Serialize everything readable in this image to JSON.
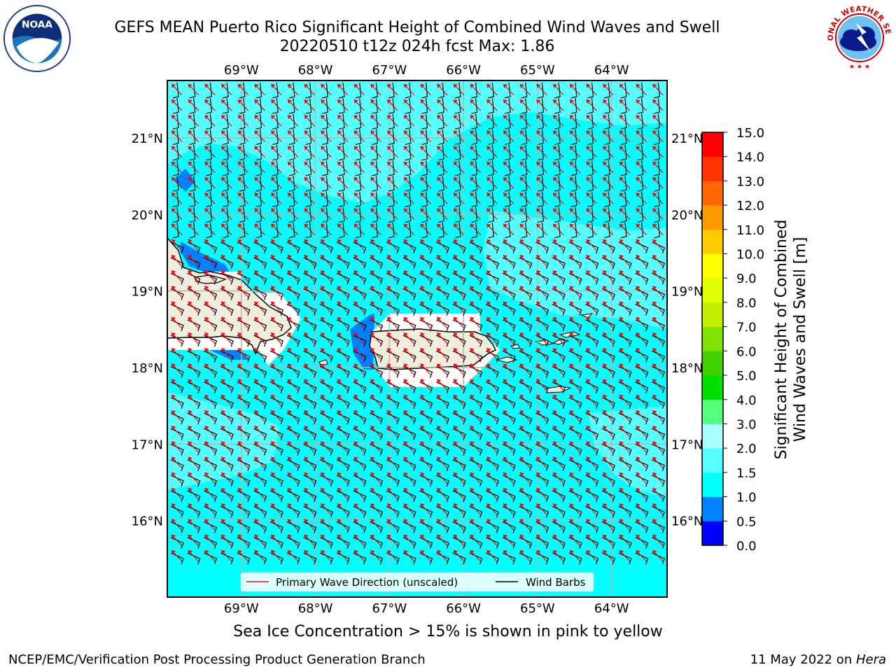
{
  "header": {
    "title_line1": "GEFS MEAN Puerto Rico Significant Height of Combined Wind Waves and Swell",
    "title_line2": "20220510 t12z 024h fcst   Max: 1.86"
  },
  "logos": {
    "left_icon": "noaa-logo-icon",
    "left_text": "NOAA",
    "right_icon": "nws-logo-icon",
    "right_text": "NATIONAL WEATHER SERVICE"
  },
  "map": {
    "lon_labels": [
      "69°W",
      "68°W",
      "67°W",
      "66°W",
      "65°W",
      "64°W"
    ],
    "lat_labels": [
      "21°N",
      "20°N",
      "19°N",
      "18°N",
      "17°N",
      "16°N"
    ],
    "lon_range": [
      -70.0,
      -63.25
    ],
    "lat_range": [
      15.0,
      21.75
    ],
    "ocean_color": "#00ffff",
    "land_color": "#efedde",
    "arrow_color": "#ff0000",
    "barb_color": "#000000"
  },
  "legend": {
    "wave_label": "Primary Wave Direction (unscaled)",
    "barb_label": "Wind Barbs"
  },
  "colorbar": {
    "title_line1": "Significant Height of Combined",
    "title_line2": "Wind Waves and Swell [m]",
    "ticks": [
      "0.0",
      "0.5",
      "1.0",
      "1.5",
      "2.0",
      "3.0",
      "4.0",
      "5.0",
      "6.0",
      "7.0",
      "8.0",
      "9.0",
      "10.0",
      "11.0",
      "12.0",
      "13.0",
      "14.0",
      "15.0"
    ],
    "colors": [
      "#0000ff",
      "#0080ff",
      "#00ffff",
      "#55ffff",
      "#aaffff",
      "#55ff80",
      "#00e000",
      "#40d000",
      "#80e000",
      "#c0f000",
      "#e0ff00",
      "#ffff00",
      "#ffcc00",
      "#ff9900",
      "#ff6600",
      "#ff3300",
      "#ff0000"
    ]
  },
  "note": "Sea Ice Concentration > 15% is shown in pink to yellow",
  "footer": {
    "left": "NCEP/EMC/Verification Post Processing Product Generation Branch",
    "right_prefix": "11 May 2022 on ",
    "right_host": "Hera"
  }
}
